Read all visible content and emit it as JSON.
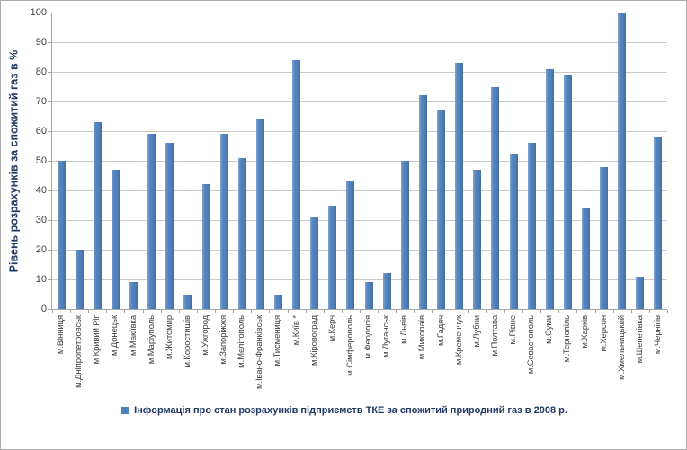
{
  "chart_data": {
    "type": "bar",
    "title": "",
    "xlabel": "",
    "ylabel": "Рівень розрахунків за спожитий газ в %",
    "ylim": [
      0,
      100
    ],
    "ytick_step": 10,
    "grid": true,
    "legend_position": "bottom",
    "legend": "Інформація про стан розрахунків підприємств ТКЕ за спожитий природний газ в 2008 р.",
    "categories": [
      "м.Вінниця",
      "м.Дніпропетровськ",
      "м.Кривий Ріг",
      "м.Донецьк",
      "м.Макіївка",
      "м.Маріуполь",
      "м.Житомир",
      "м.Коростишів",
      "м.Ужгород",
      "м.Запоріжжя",
      "м.Мелітополь",
      "м.Івано-Франківськ",
      "м.Тисмениця",
      "м.Київ *",
      "м.Кіровоград",
      "м.Керч",
      "м.Сімферополь",
      "м.Феодосія",
      "м.Луганськ",
      "м.Львів",
      "м.Миколаїв",
      "м.Гадяч",
      "м.Кременчук",
      "м.Лубни",
      "м.Полтава",
      "м.Рівне",
      "м.Севастополь",
      "м.Суми",
      "м.Тернопіль",
      "м.Харків",
      "м.Херсон",
      "м.Хмельницький",
      "м.Шепетівка",
      "м.Чернігів"
    ],
    "values": [
      50,
      20,
      63,
      47,
      9,
      59,
      56,
      5,
      42,
      59,
      51,
      64,
      5,
      84,
      31,
      35,
      43,
      9,
      12,
      50,
      72,
      67,
      83,
      47,
      75,
      52,
      56,
      81,
      79,
      34,
      48,
      100,
      11,
      58
    ],
    "bar_color": "#4F81BD"
  },
  "colors": {
    "bar": "#4F81BD",
    "axis_title_text": "#1F3864",
    "legend_text": "#1F3864",
    "tick_text": "#404040",
    "gridline": "#C9C9C9",
    "axis_line": "#A6A6A6",
    "border": "#ABABAB"
  }
}
